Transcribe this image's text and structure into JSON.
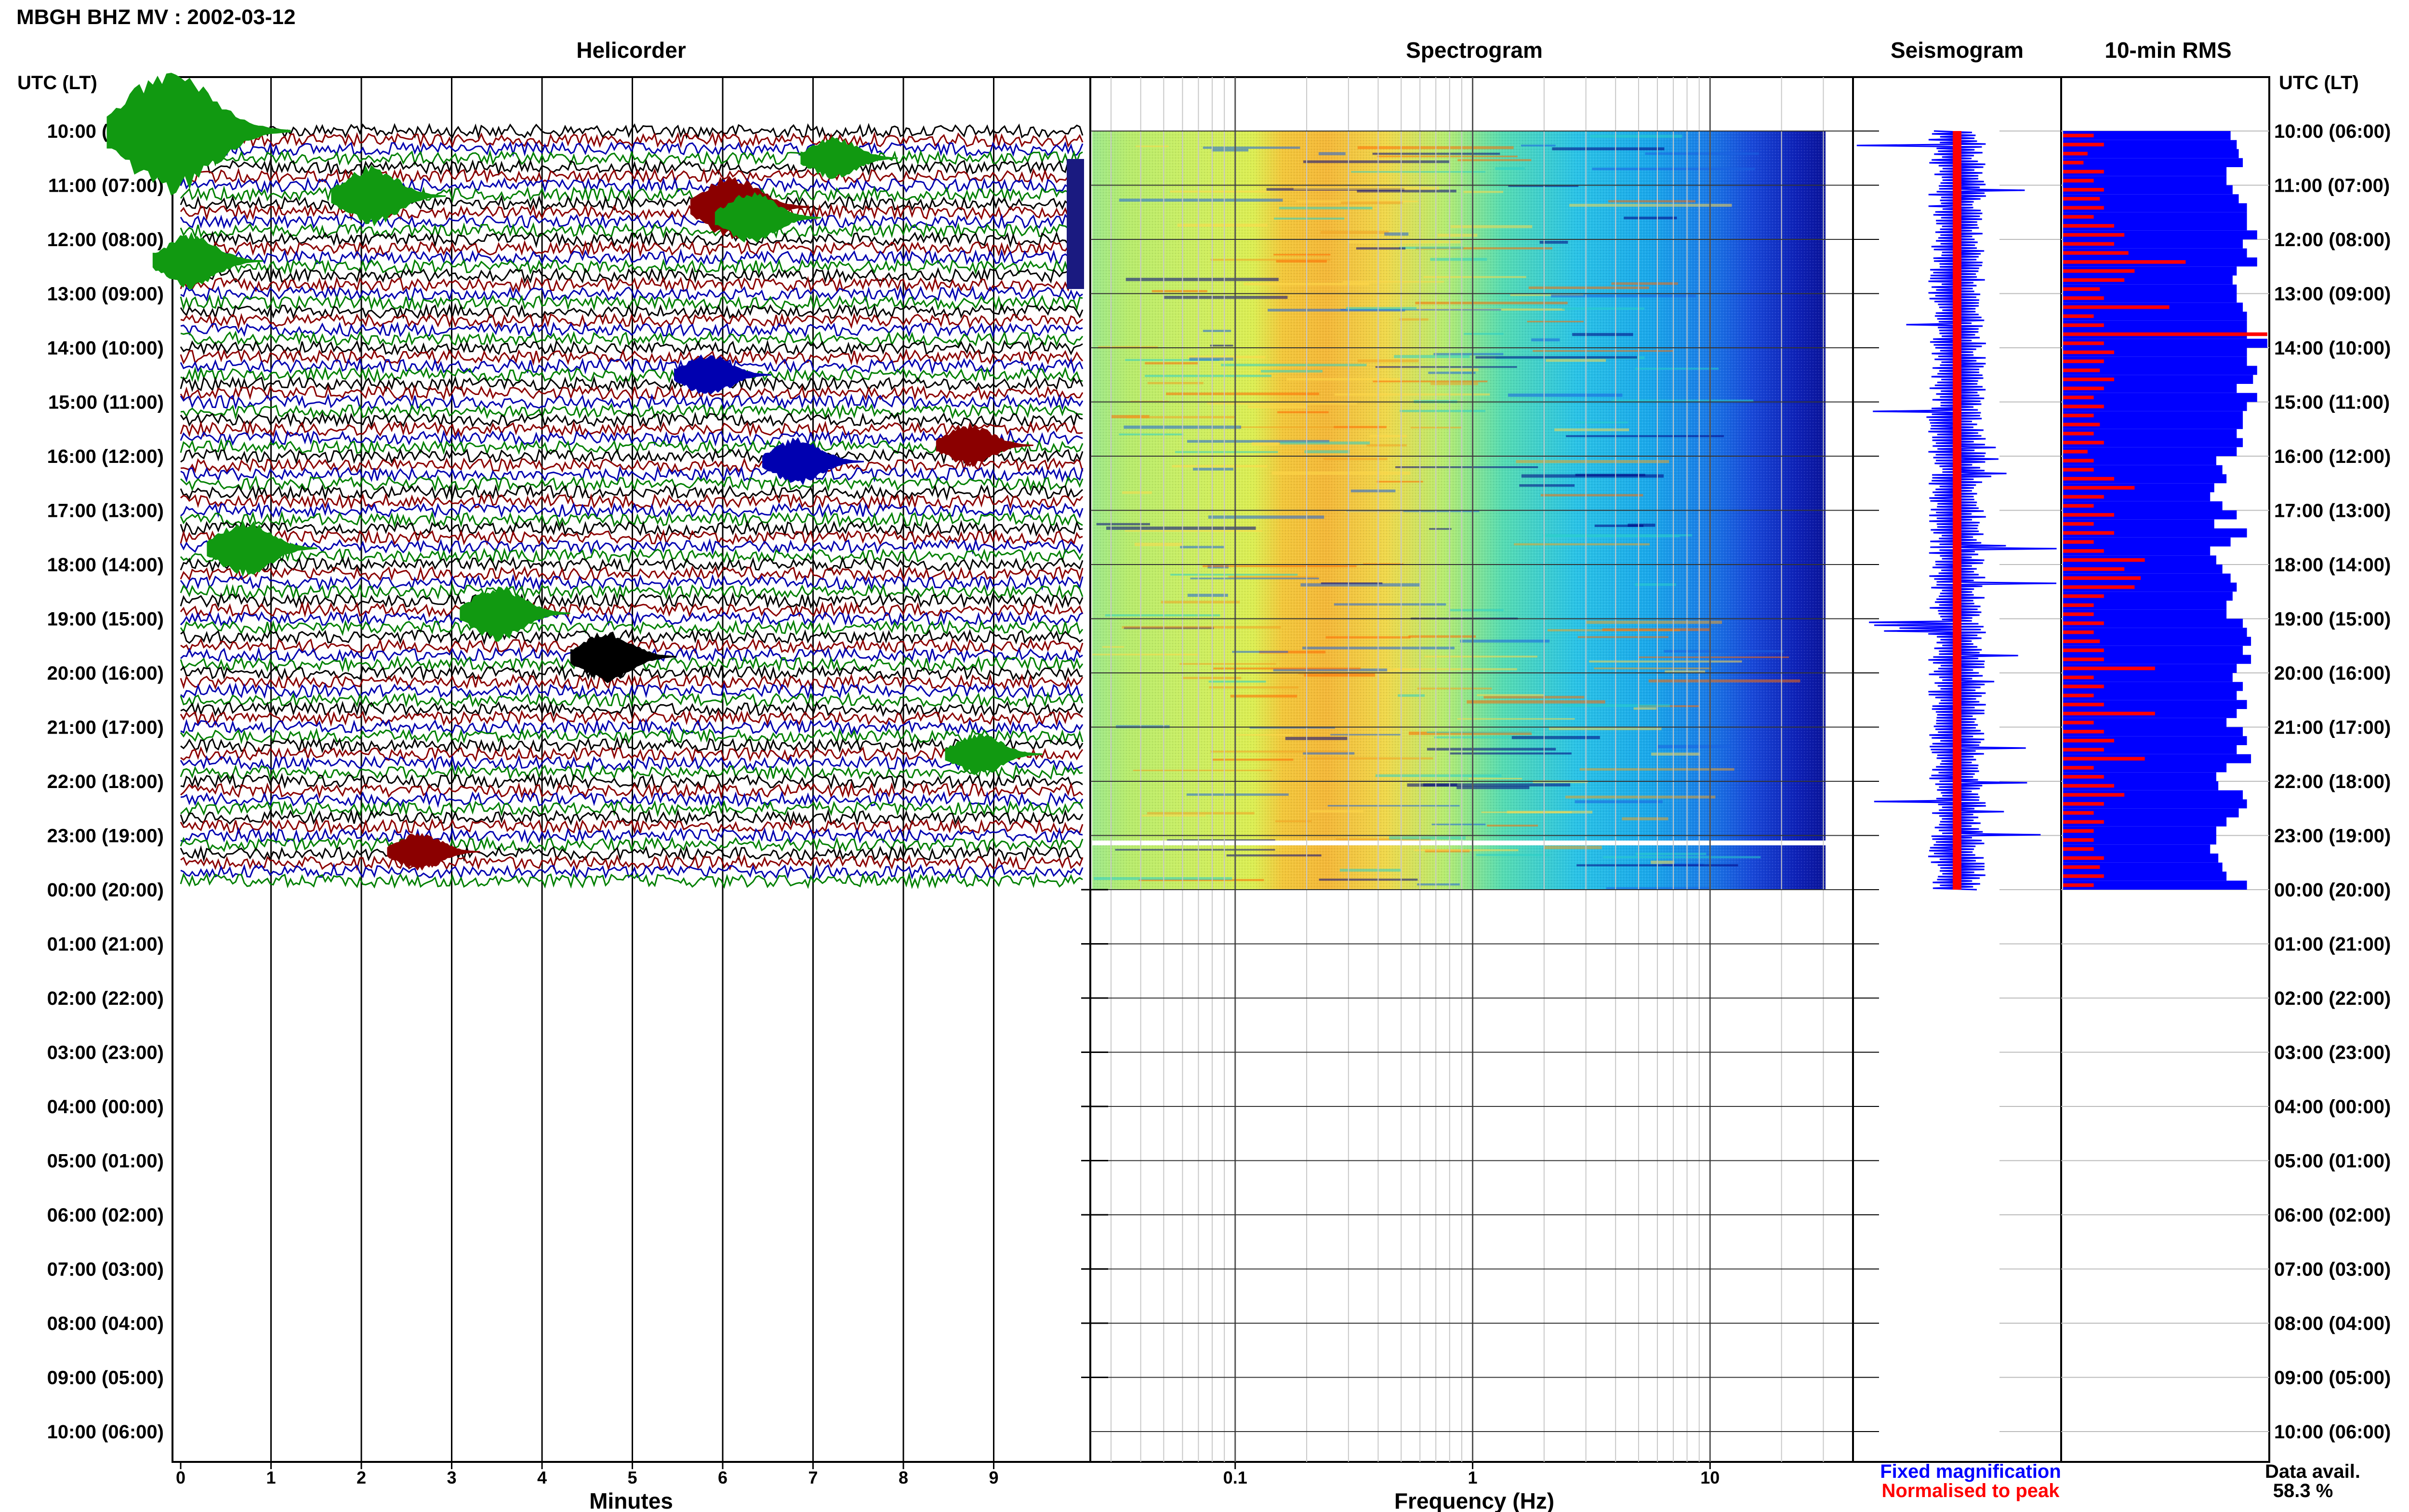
{
  "title": "MBGH BHZ MV : 2002-03-12",
  "utc_header": "UTC (LT)",
  "panels": {
    "helicorder": "Helicorder",
    "spectrogram": "Spectrogram",
    "seismogram": "Seismogram",
    "rms": "10-min RMS"
  },
  "time_labels": [
    "10:00 (06:00)",
    "11:00 (07:00)",
    "12:00 (08:00)",
    "13:00 (09:00)",
    "14:00 (10:00)",
    "15:00 (11:00)",
    "16:00 (12:00)",
    "17:00 (13:00)",
    "18:00 (14:00)",
    "19:00 (15:00)",
    "20:00 (16:00)",
    "21:00 (17:00)",
    "22:00 (18:00)",
    "23:00 (19:00)",
    "00:00 (20:00)",
    "01:00 (21:00)",
    "02:00 (22:00)",
    "03:00 (23:00)",
    "04:00 (00:00)",
    "05:00 (01:00)",
    "06:00 (02:00)",
    "07:00 (03:00)",
    "08:00 (04:00)",
    "09:00 (05:00)",
    "10:00 (06:00)"
  ],
  "x_axes": {
    "helicorder": {
      "label": "Minutes",
      "ticks": [
        "0",
        "1",
        "2",
        "3",
        "4",
        "5",
        "6",
        "7",
        "8",
        "9"
      ]
    },
    "spectrogram": {
      "label": "Frequency (Hz)",
      "ticks": [
        "0.1",
        "1",
        "10"
      ]
    }
  },
  "legend": {
    "fixed": "Fixed magnification",
    "normalised": "Normalised to peak",
    "fixed_color": "#0000ff",
    "normalised_color": "#ff0000"
  },
  "data_avail": {
    "label": "Data avail.",
    "value": "58.3 %"
  },
  "colors": {
    "trace_cycle": [
      "#000000",
      "#8b0000",
      "#0000b0",
      "#008000"
    ],
    "rms_fixed": "#0000ff",
    "rms_normalised": "#ff0000"
  },
  "chart_data": {
    "type": "heatmap",
    "date": "2002-03-12",
    "station": "MBGH BHZ MV",
    "data_availability_percent": 58.3,
    "helicorder": {
      "x_range_minutes": [
        0,
        10
      ],
      "trace_interval_minutes": 10,
      "filled_hours": 14,
      "events": [
        {
          "hour": 0.0,
          "minute": 0.2,
          "amplitude": 3.0,
          "color": "green"
        },
        {
          "hour": 0.5,
          "minute": 7.4,
          "amplitude": 1.0,
          "color": "green"
        },
        {
          "hour": 1.2,
          "minute": 2.3,
          "amplitude": 1.4,
          "color": "green"
        },
        {
          "hour": 1.4,
          "minute": 6.3,
          "amplitude": 1.5,
          "color": "darkred"
        },
        {
          "hour": 1.6,
          "minute": 6.5,
          "amplitude": 1.2,
          "color": "green"
        },
        {
          "hour": 2.4,
          "minute": 0.3,
          "amplitude": 1.3,
          "color": "green"
        },
        {
          "hour": 4.5,
          "minute": 6.0,
          "amplitude": 1.0,
          "color": "blue"
        },
        {
          "hour": 5.8,
          "minute": 8.9,
          "amplitude": 1.0,
          "color": "darkred"
        },
        {
          "hour": 6.1,
          "minute": 7.0,
          "amplitude": 1.1,
          "color": "blue"
        },
        {
          "hour": 7.7,
          "minute": 0.9,
          "amplitude": 1.3,
          "color": "green"
        },
        {
          "hour": 8.9,
          "minute": 3.7,
          "amplitude": 1.3,
          "color": "green"
        },
        {
          "hour": 9.7,
          "minute": 4.9,
          "amplitude": 1.2,
          "color": "black"
        },
        {
          "hour": 11.5,
          "minute": 9.0,
          "amplitude": 1.0,
          "color": "green"
        },
        {
          "hour": 13.3,
          "minute": 2.8,
          "amplitude": 0.9,
          "color": "darkred"
        }
      ]
    },
    "spectrogram": {
      "x_scale": "log",
      "x_range_hz": [
        0.025,
        40
      ],
      "peak_band_hz": [
        0.2,
        0.6
      ],
      "colormap": "jet",
      "filled_hours": 14,
      "gap_hour": 13.1
    },
    "seismogram": {
      "filled_hours": 14,
      "fixed_color": "blue",
      "normalised_color": "red"
    },
    "rms": {
      "interval_minutes": 10,
      "fixed_values": [
        0.82,
        0.85,
        0.86,
        0.88,
        0.8,
        0.8,
        0.83,
        0.86,
        0.9,
        0.9,
        0.9,
        0.95,
        0.88,
        0.9,
        0.95,
        0.85,
        0.83,
        0.85,
        0.85,
        0.88,
        0.9,
        0.9,
        0.9,
        1.0,
        0.9,
        0.9,
        0.95,
        0.93,
        0.85,
        0.95,
        0.9,
        0.88,
        0.88,
        0.85,
        0.88,
        0.85,
        0.75,
        0.78,
        0.8,
        0.74,
        0.72,
        0.78,
        0.85,
        0.74,
        0.9,
        0.82,
        0.72,
        0.75,
        0.78,
        0.82,
        0.85,
        0.83,
        0.8,
        0.8,
        0.88,
        0.9,
        0.92,
        0.88,
        0.92,
        0.85,
        0.83,
        0.88,
        0.85,
        0.9,
        0.85,
        0.8,
        0.88,
        0.9,
        0.85,
        0.92,
        0.8,
        0.75,
        0.76,
        0.88,
        0.9,
        0.86,
        0.8,
        0.75,
        0.75,
        0.72,
        0.76,
        0.78,
        0.8,
        0.9
      ],
      "normalised_values": [
        0.15,
        0.2,
        0.12,
        0.1,
        0.2,
        0.15,
        0.2,
        0.18,
        0.2,
        0.15,
        0.25,
        0.3,
        0.25,
        0.32,
        0.6,
        0.35,
        0.3,
        0.18,
        0.2,
        0.52,
        0.15,
        0.2,
        1.0,
        0.2,
        0.25,
        0.2,
        0.18,
        0.25,
        0.2,
        0.15,
        0.2,
        0.15,
        0.18,
        0.15,
        0.2,
        0.12,
        0.15,
        0.15,
        0.25,
        0.35,
        0.2,
        0.15,
        0.25,
        0.15,
        0.25,
        0.15,
        0.2,
        0.4,
        0.3,
        0.38,
        0.35,
        0.2,
        0.15,
        0.15,
        0.2,
        0.15,
        0.18,
        0.2,
        0.2,
        0.45,
        0.15,
        0.2,
        0.15,
        0.2,
        0.45,
        0.15,
        0.2,
        0.25,
        0.2,
        0.4,
        0.15,
        0.2,
        0.25,
        0.3,
        0.2,
        0.15,
        0.2,
        0.15,
        0.15,
        0.15,
        0.2,
        0.18,
        0.2,
        0.15
      ]
    }
  }
}
